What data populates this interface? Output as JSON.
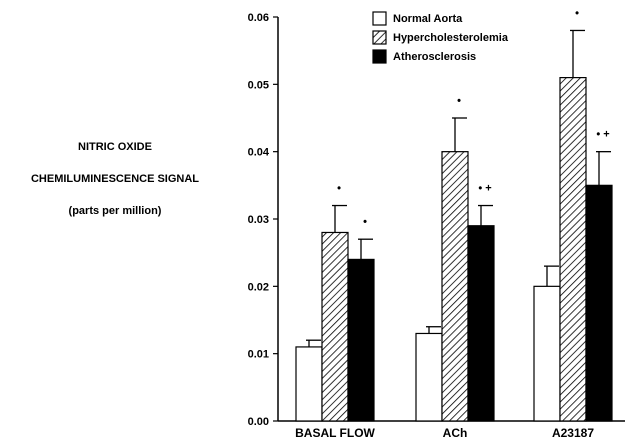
{
  "ylabel": {
    "line1": "NITRIC OXIDE",
    "line2": "CHEMILUMINESCENCE SIGNAL",
    "line3": "(parts per million)"
  },
  "chart_data": {
    "type": "bar",
    "categories": [
      "BASAL FLOW",
      "ACh",
      "A23187"
    ],
    "ylim": [
      0,
      0.06
    ],
    "yticks": [
      "0.00",
      "0.01",
      "0.02",
      "0.03",
      "0.04",
      "0.05",
      "0.06"
    ],
    "ytick_values": [
      0,
      0.01,
      0.02,
      0.03,
      0.04,
      0.05,
      0.06
    ],
    "series": [
      {
        "name": "Normal Aorta",
        "style": "white",
        "values": [
          0.011,
          0.013,
          0.02
        ],
        "errors": [
          0.001,
          0.001,
          0.003
        ],
        "annotations": [
          "",
          "",
          ""
        ]
      },
      {
        "name": "Hypercholesterolemia",
        "style": "hatched",
        "values": [
          0.028,
          0.04,
          0.051
        ],
        "errors": [
          0.004,
          0.005,
          0.007
        ],
        "annotations": [
          "•",
          "•",
          "•"
        ]
      },
      {
        "name": "Atherosclerosis",
        "style": "black",
        "values": [
          0.024,
          0.029,
          0.035
        ],
        "errors": [
          0.003,
          0.003,
          0.005
        ],
        "annotations": [
          "•",
          "• +",
          "• +"
        ]
      }
    ],
    "legend_position": "top-center",
    "grid": false,
    "colors": {
      "axis": "#000000",
      "black_fill": "#000000",
      "white_fill": "#ffffff",
      "hatch": "#000000"
    }
  }
}
